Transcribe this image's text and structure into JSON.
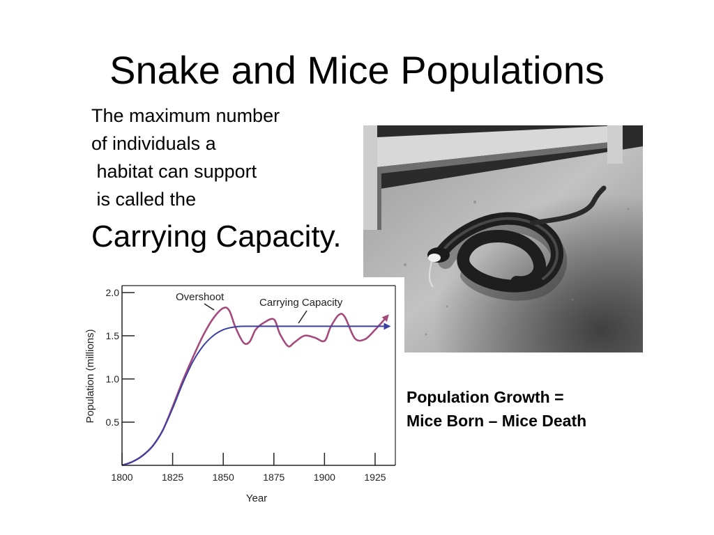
{
  "slide": {
    "title": "Snake and Mice Populations",
    "definition_lines": [
      "The maximum number",
      "of individuals a",
      " habitat can support",
      " is called the"
    ],
    "term": "Carrying Capacity.",
    "equation_lines": [
      "Population Growth =",
      "Mice Born – Mice Death"
    ]
  },
  "photo": {
    "subject": "snake eating a mouse on sandy ground (black and white photo)"
  },
  "chart_data": {
    "type": "line",
    "title": "",
    "xlabel": "Year",
    "ylabel": "Population (millions)",
    "xlim": [
      1800,
      1935
    ],
    "ylim": [
      0,
      2.0
    ],
    "x_ticks": [
      "1800",
      "1825",
      "1850",
      "1875",
      "1900",
      "1925"
    ],
    "y_ticks": [
      "0.5",
      "1.0",
      "1.5",
      "2.0"
    ],
    "annotations": [
      "Overshoot",
      "Carrying Capacity"
    ],
    "series": [
      {
        "color": "#a44a7c",
        "x": [
          1800,
          1805,
          1810,
          1815,
          1820,
          1825,
          1830,
          1835,
          1840,
          1845,
          1850,
          1853,
          1856,
          1860,
          1863,
          1866,
          1870,
          1875,
          1878,
          1882,
          1885,
          1890,
          1895,
          1900,
          1903,
          1907,
          1910,
          1915,
          1920,
          1925,
          1930
        ],
        "values": [
          0.0,
          0.04,
          0.11,
          0.22,
          0.4,
          0.68,
          0.98,
          1.25,
          1.5,
          1.7,
          1.82,
          1.79,
          1.6,
          1.42,
          1.43,
          1.57,
          1.65,
          1.69,
          1.52,
          1.38,
          1.42,
          1.5,
          1.48,
          1.44,
          1.6,
          1.74,
          1.72,
          1.47,
          1.46,
          1.57,
          1.7
        ]
      },
      {
        "color": "#3b3fa0",
        "x": [
          1800,
          1805,
          1810,
          1815,
          1820,
          1825,
          1830,
          1835,
          1840,
          1845,
          1850,
          1855,
          1860,
          1870,
          1880,
          1890,
          1900,
          1910,
          1920,
          1930
        ],
        "values": [
          0.0,
          0.04,
          0.11,
          0.22,
          0.4,
          0.66,
          0.95,
          1.2,
          1.38,
          1.5,
          1.57,
          1.6,
          1.61,
          1.61,
          1.61,
          1.61,
          1.61,
          1.61,
          1.61,
          1.61
        ]
      }
    ],
    "grid": false,
    "legend": "none"
  }
}
